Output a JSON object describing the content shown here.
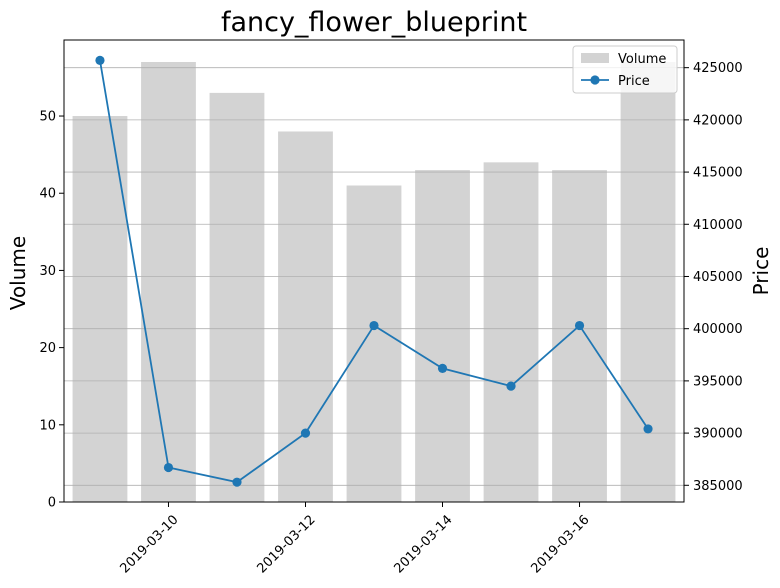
{
  "chart_data": {
    "type": "bar",
    "title": "fancy_flower_blueprint",
    "x": [
      "2019-03-09",
      "2019-03-10",
      "2019-03-11",
      "2019-03-12",
      "2019-03-13",
      "2019-03-14",
      "2019-03-15",
      "2019-03-16",
      "2019-03-17"
    ],
    "xtick_labels": [
      "2019-03-10",
      "2019-03-12",
      "2019-03-14",
      "2019-03-16"
    ],
    "xtick_values": [
      "2019-03-10",
      "2019-03-12",
      "2019-03-14",
      "2019-03-16"
    ],
    "xlabel": "",
    "series": [
      {
        "name": "Volume",
        "type": "bar",
        "axis": "left",
        "color": "#d3d3d3",
        "values": [
          50,
          57,
          53,
          48,
          41,
          43,
          44,
          43,
          57
        ]
      },
      {
        "name": "Price",
        "type": "line",
        "axis": "right",
        "color": "#1f77b4",
        "marker": "circle",
        "values": [
          425700,
          386700,
          385300,
          390000,
          400300,
          396200,
          394500,
          400300,
          390400
        ]
      }
    ],
    "ylabel_left": "Volume",
    "ylim_left": [
      0,
      59.85
    ],
    "yticks_left": [
      0,
      10,
      20,
      30,
      40,
      50
    ],
    "ylabel_right": "Price",
    "ylim_right": [
      383400,
      427650
    ],
    "yticks_right": [
      385000,
      390000,
      395000,
      400000,
      405000,
      410000,
      415000,
      420000,
      425000
    ],
    "grid": "horizontal gridlines on right (Price) axis",
    "legend_position": "upper-right"
  }
}
